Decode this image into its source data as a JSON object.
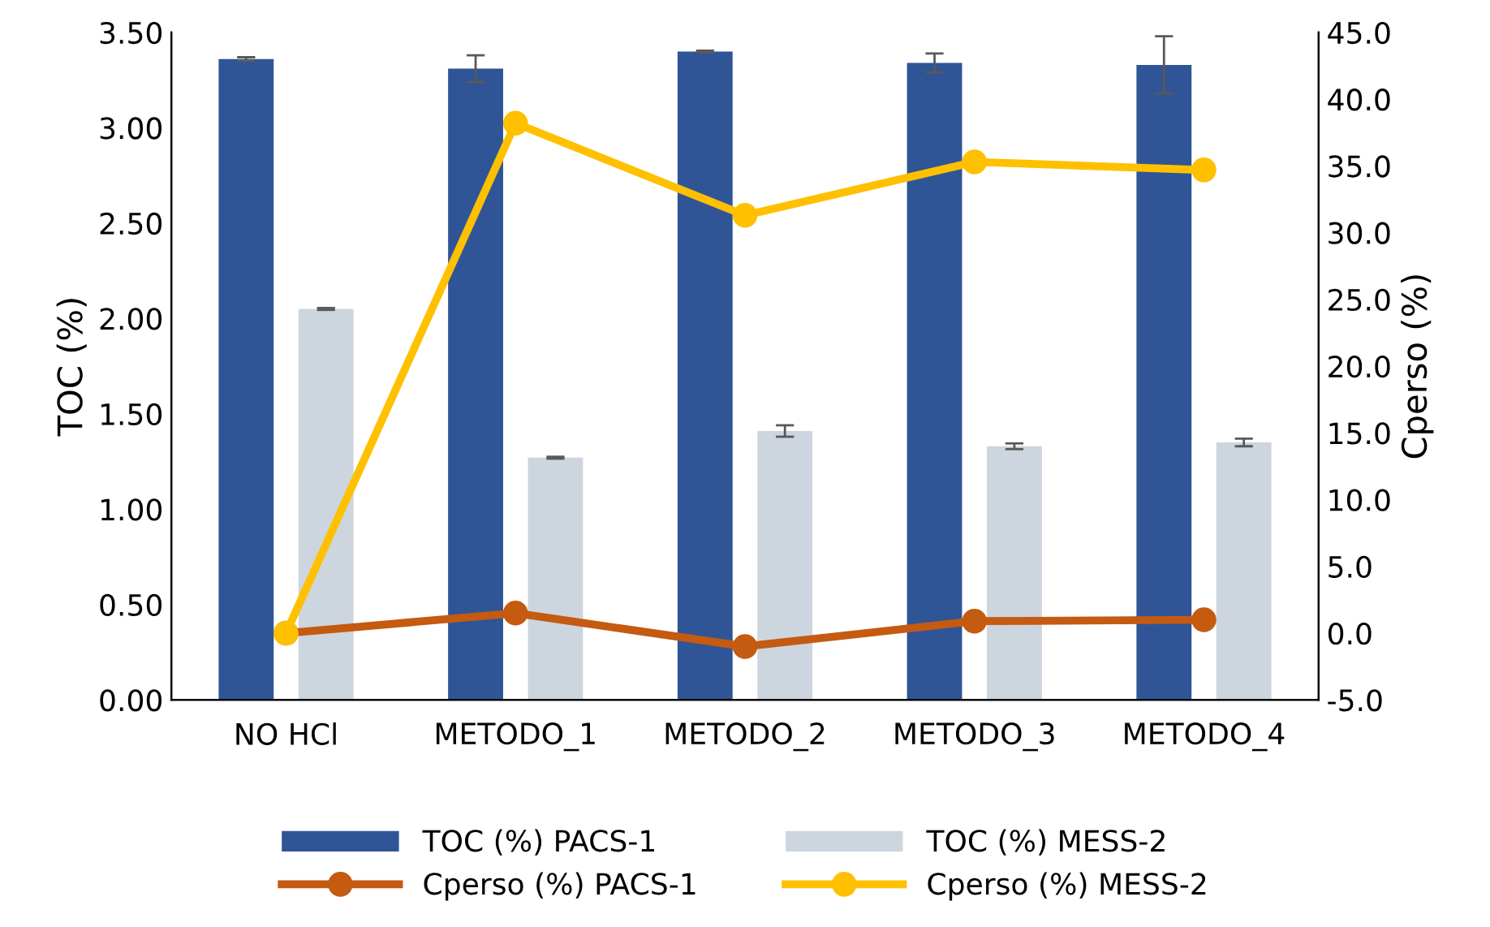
{
  "chart_data": {
    "type": "bar",
    "categories": [
      "NO HCl",
      "METODO_1",
      "METODO_2",
      "METODO_3",
      "METODO_4"
    ],
    "ylabel": "TOC (%)",
    "y2label": "Cperso (%)",
    "ylim": [
      0,
      3.5
    ],
    "yticks": [
      {
        "value": 0,
        "label": "0.00"
      },
      {
        "value": 0.5,
        "label": "0.50"
      },
      {
        "value": 1,
        "label": "1.00"
      },
      {
        "value": 1.5,
        "label": "1.50"
      },
      {
        "value": 2,
        "label": "2.00"
      },
      {
        "value": 2.5,
        "label": "2.50"
      },
      {
        "value": 3,
        "label": "3.00"
      },
      {
        "value": 3.5,
        "label": "3.50"
      }
    ],
    "y2lim": [
      -5,
      45
    ],
    "y2ticks": [
      {
        "value": -5,
        "label": "-5.0"
      },
      {
        "value": 0,
        "label": "0.0"
      },
      {
        "value": 5,
        "label": "5.0"
      },
      {
        "value": 10,
        "label": "10.0"
      },
      {
        "value": 15,
        "label": "15.0"
      },
      {
        "value": 20,
        "label": "20.0"
      },
      {
        "value": 25,
        "label": "25.0"
      },
      {
        "value": 30,
        "label": "30.0"
      },
      {
        "value": 35,
        "label": "35.0"
      },
      {
        "value": 40,
        "label": "40.0"
      },
      {
        "value": 45,
        "label": "45.0"
      }
    ],
    "legend": "bottom",
    "grid": false,
    "marker": "circle",
    "line_style": "solid",
    "series": [
      {
        "name": "TOC (%) PACS-1",
        "color": "#2f5597",
        "values": [
          3.36,
          3.31,
          3.4,
          3.34,
          3.33
        ],
        "errors": [
          0.01,
          0.07,
          0.005,
          0.05,
          0.15
        ]
      },
      {
        "name": "TOC (%) MESS-2",
        "color": "#cdd5df",
        "values": [
          2.05,
          1.27,
          1.41,
          1.33,
          1.35
        ],
        "errors": [
          0.005,
          0.005,
          0.03,
          0.015,
          0.02
        ]
      },
      {
        "name": "Cperso (%) PACS-1",
        "type": "line",
        "axis": "y2",
        "color": "#c55a11",
        "values": [
          0,
          1.5,
          -1.0,
          0.9,
          1.0
        ]
      },
      {
        "name": "Cperso (%) MESS-2",
        "type": "line",
        "axis": "y2",
        "color": "#ffc000",
        "values": [
          0,
          38.2,
          31.3,
          35.3,
          34.7
        ]
      }
    ]
  }
}
